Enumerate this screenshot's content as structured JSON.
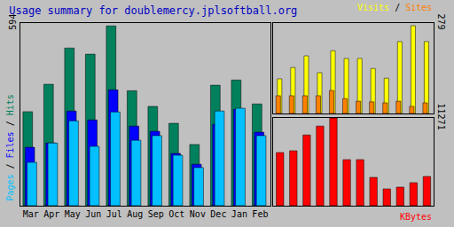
{
  "chart_data": [
    {
      "type": "bar",
      "title": "Usage summary for doublemercy.jplsoftball.org",
      "annotations": [
        "Pages / Files / Hits"
      ],
      "categories": [
        "Mar",
        "Apr",
        "May",
        "Jun",
        "Jul",
        "Aug",
        "Sep",
        "Oct",
        "Nov",
        "Dec",
        "Jan",
        "Feb"
      ],
      "series": [
        {
          "name": "Hits",
          "color": "#00805c",
          "values": [
            306,
            395,
            513,
            493,
            585,
            374,
            323,
            268,
            199,
            392,
            409,
            331
          ]
        },
        {
          "name": "Files",
          "color": "#0000ff",
          "values": [
            190,
            204,
            308,
            279,
            377,
            259,
            242,
            170,
            135,
            265,
            314,
            239
          ]
        },
        {
          "name": "Pages",
          "color": "#00c0ff",
          "values": [
            141,
            204,
            276,
            193,
            305,
            213,
            228,
            164,
            124,
            308,
            317,
            228
          ]
        }
      ],
      "ylim": [
        0,
        594
      ],
      "yticks": [
        594
      ],
      "grid": false
    },
    {
      "type": "bar",
      "annotations": [
        "Visits / Sites"
      ],
      "categories": [
        "Mar",
        "Apr",
        "May",
        "Jun",
        "Jul",
        "Aug",
        "Sep",
        "Oct",
        "Nov",
        "Dec",
        "Jan",
        "Feb"
      ],
      "series": [
        {
          "name": "Visits",
          "color": "#ffff00",
          "values": [
            107,
            142,
            178,
            126,
            194,
            170,
            170,
            139,
            109,
            222,
            271,
            222
          ]
        },
        {
          "name": "Sites",
          "color": "#ff8000",
          "values": [
            55,
            55,
            55,
            55,
            71,
            46,
            38,
            36,
            33,
            38,
            22,
            33
          ]
        }
      ],
      "ylim": [
        0,
        279
      ],
      "yticks": [
        279
      ],
      "tick_labels": "y",
      "grid": false
    },
    {
      "type": "bar",
      "annotations": [
        "KBytes"
      ],
      "categories": [
        "Mar",
        "Apr",
        "May",
        "Jun",
        "Jul",
        "Aug",
        "Sep",
        "Oct",
        "Nov",
        "Dec",
        "Jan",
        "Feb"
      ],
      "series": [
        {
          "name": "KBytes",
          "color": "#ff0000",
          "values": [
            6830,
            7060,
            9100,
            10240,
            11271,
            5920,
            5920,
            3640,
            2160,
            2390,
            2960,
            3760
          ]
        }
      ],
      "ylim": [
        0,
        11271
      ],
      "yticks": [
        11271
      ],
      "tick_labels": "y",
      "grid": false
    }
  ]
}
